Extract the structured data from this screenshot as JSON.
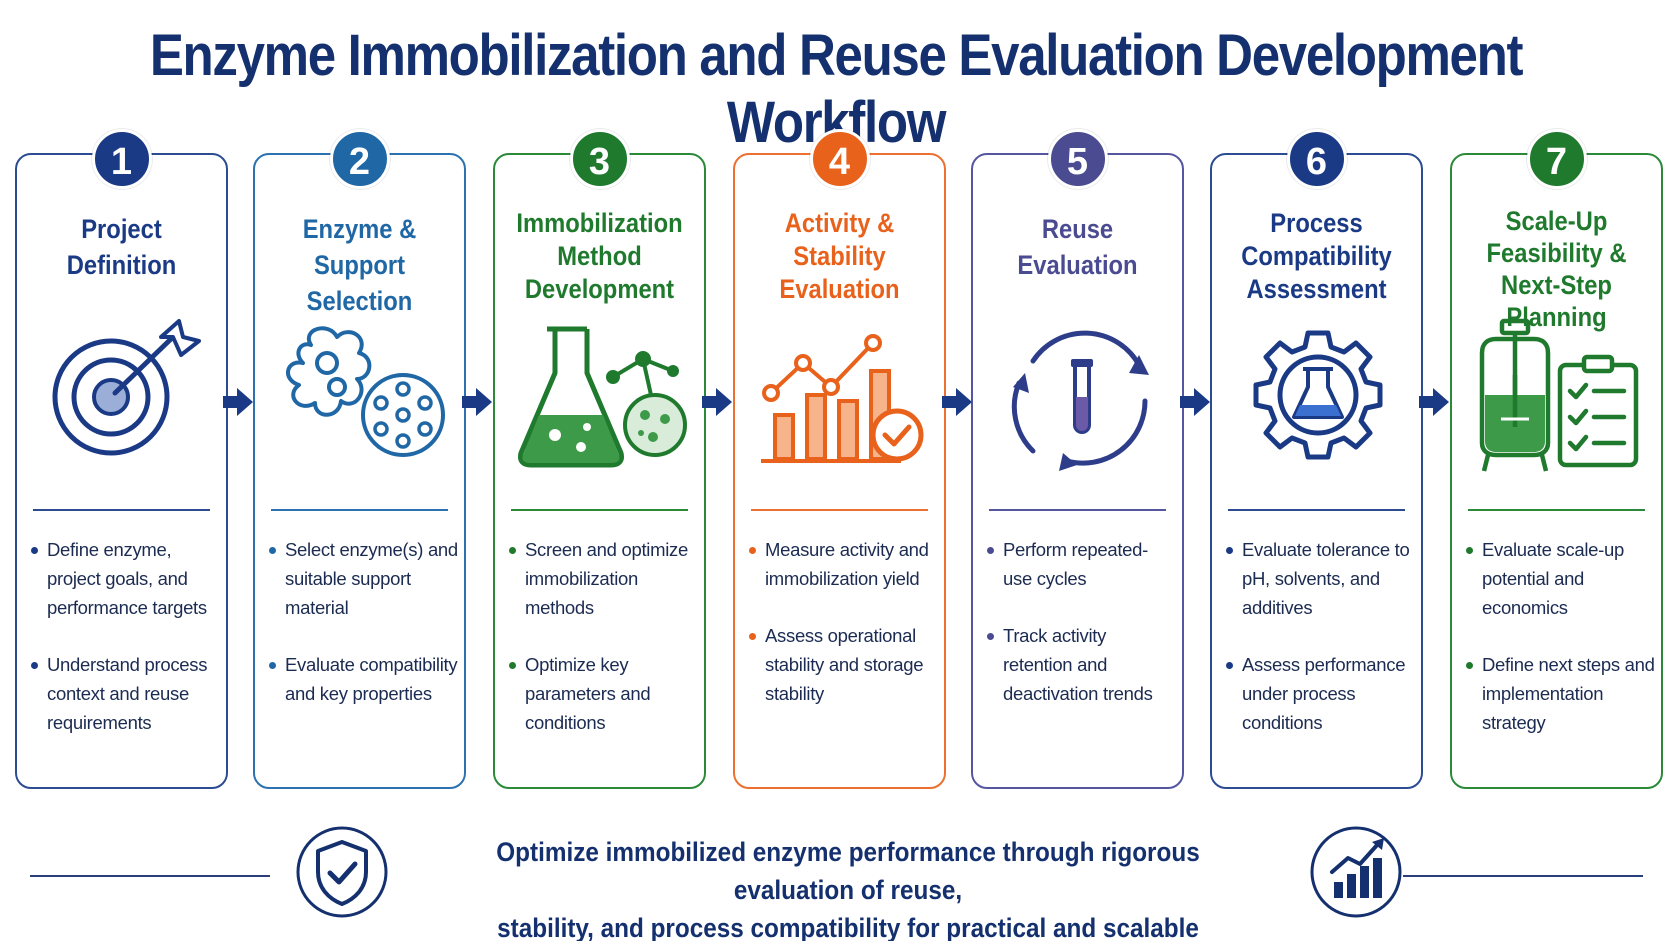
{
  "title": "Enzyme Immobilization and Reuse Evaluation Development Workflow",
  "stages": [
    {
      "number": "1",
      "title_lines": [
        "Project",
        "Definition"
      ],
      "color": "#1b3a86",
      "icon": "target-arrow-icon",
      "bullets": [
        "Define enzyme, project goals, and performance targets",
        "Understand process context and reuse requirements"
      ]
    },
    {
      "number": "2",
      "title_lines": [
        "Enzyme &",
        "Support Selection"
      ],
      "color": "#2067a6",
      "icon": "enzyme-support-icon",
      "bullets": [
        "Select enzyme(s) and suitable support material",
        "Evaluate compatibility and key properties"
      ]
    },
    {
      "number": "3",
      "title_lines": [
        "Immobilization",
        "Method",
        "Development"
      ],
      "color": "#1f7a2e",
      "icon": "flask-molecule-icon",
      "bullets": [
        "Screen and optimize immobilization methods",
        "Optimize key parameters and conditions"
      ]
    },
    {
      "number": "4",
      "title_lines": [
        "Activity &",
        "Stability",
        "Evaluation"
      ],
      "color": "#e8621c",
      "icon": "chart-check-icon",
      "bullets": [
        "Measure activity and immobilization yield",
        "Assess operational stability and storage stability"
      ]
    },
    {
      "number": "5",
      "title_lines": [
        "Reuse",
        "Evaluation"
      ],
      "color": "#4a4b90",
      "icon": "recycle-tube-icon",
      "bullets": [
        "Perform repeated-use cycles",
        "Track activity retention and deactivation trends"
      ]
    },
    {
      "number": "6",
      "title_lines": [
        "Process",
        "Compatibility",
        "Assessment"
      ],
      "color": "#1b3a86",
      "icon": "gear-flask-icon",
      "bullets": [
        "Evaluate tolerance to pH, solvents, and additives",
        "Assess performance under process conditions"
      ]
    },
    {
      "number": "7",
      "title_lines": [
        "Scale-Up",
        "Feasibility &",
        "Next-Step",
        "Planning"
      ],
      "color": "#1f7a2e",
      "icon": "reactor-checklist-icon",
      "bullets": [
        "Evaluate scale-up potential and economics",
        "Define next steps and implementation strategy"
      ]
    }
  ],
  "footer": {
    "text_lines": [
      "Optimize immobilized enzyme performance through rigorous evaluation of reuse,",
      "stability, and process compatibility for practical and scalable biocatalysis."
    ],
    "left_icon": "shield-check-icon",
    "right_icon": "growth-chart-icon",
    "color": "#14306e"
  }
}
